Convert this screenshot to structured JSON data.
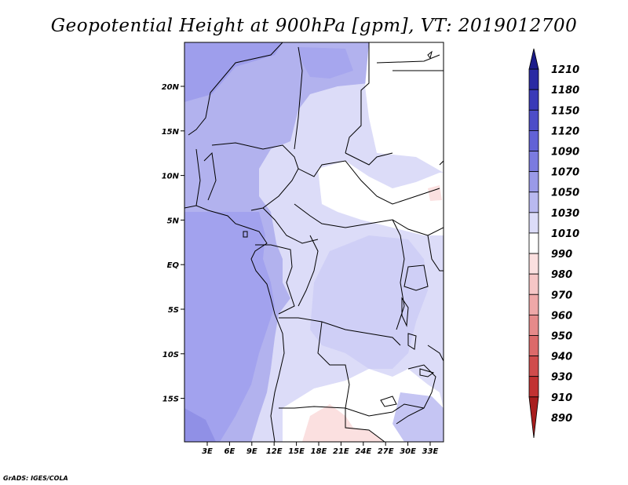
{
  "title": "Geopotential Height at 900hPa [gpm], VT: 2019012700",
  "credit": "GrADS: IGES/COLA",
  "map": {
    "lat_labels": [
      "20N",
      "15N",
      "10N",
      "5N",
      "EQ",
      "5S",
      "10S",
      "15S"
    ],
    "lon_labels": [
      "3E",
      "6E",
      "9E",
      "12E",
      "15E",
      "18E",
      "21E",
      "24E",
      "27E",
      "30E",
      "33E"
    ]
  },
  "colorbar": {
    "labels": [
      "1210",
      "1180",
      "1150",
      "1120",
      "1090",
      "1070",
      "1050",
      "1030",
      "1010",
      "990",
      "980",
      "970",
      "960",
      "950",
      "940",
      "930",
      "910",
      "890"
    ],
    "colors": [
      "#1c1c8a",
      "#2a2aa3",
      "#3a3ab8",
      "#4d4dc8",
      "#6262d6",
      "#7b7be0",
      "#9a9ae8",
      "#b9b9f0",
      "#dcdcf8",
      "#ffffff",
      "#fbe0e0",
      "#f6c6c6",
      "#efa8a8",
      "#e68a8a",
      "#dc6a6a",
      "#d04c4c",
      "#c23232",
      "#a81e1e"
    ]
  }
}
